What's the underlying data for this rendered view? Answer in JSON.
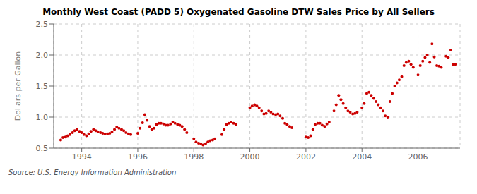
{
  "chart_data": {
    "type": "scatter",
    "title": "Monthly West Coast (PADD 5) Oxygenated Gasoline DTW Sales Price by All Sellers",
    "ylabel": "Dollars per Gallon",
    "annotations": [
      "Source: U.S. Energy Information Administration"
    ],
    "color": "#cc0000",
    "grid": true,
    "xlim": [
      1993.0,
      2007.5
    ],
    "xticks": [
      1994,
      1996,
      1998,
      2000,
      2002,
      2004,
      2006
    ],
    "ylim": [
      0.5,
      2.5
    ],
    "yticks": [
      0.5,
      {
        "value": 1.0,
        "label": "1.0"
      },
      1.5,
      {
        "value": 2.0,
        "label": "2.0"
      },
      2.5
    ],
    "x": [
      1993.25,
      1993.33,
      1993.42,
      1993.5,
      1993.58,
      1993.67,
      1993.75,
      1993.83,
      1993.92,
      1994.0,
      1994.08,
      1994.17,
      1994.25,
      1994.33,
      1994.42,
      1994.5,
      1994.58,
      1994.67,
      1994.75,
      1994.83,
      1994.92,
      1995.0,
      1995.08,
      1995.17,
      1995.25,
      1995.33,
      1995.42,
      1995.5,
      1995.58,
      1995.67,
      1995.75,
      1996.0,
      1996.08,
      1996.17,
      1996.25,
      1996.33,
      1996.42,
      1996.5,
      1996.58,
      1996.67,
      1996.75,
      1996.83,
      1996.92,
      1997.0,
      1997.08,
      1997.17,
      1997.25,
      1997.33,
      1997.42,
      1997.5,
      1997.58,
      1997.67,
      1997.75,
      1998.0,
      1998.08,
      1998.17,
      1998.25,
      1998.33,
      1998.42,
      1998.5,
      1998.58,
      1998.67,
      1998.75,
      1999.0,
      1999.08,
      1999.17,
      1999.25,
      1999.33,
      1999.42,
      1999.5,
      2000.0,
      2000.08,
      2000.17,
      2000.25,
      2000.33,
      2000.42,
      2000.5,
      2000.58,
      2000.67,
      2000.75,
      2000.83,
      2000.92,
      2001.0,
      2001.08,
      2001.17,
      2001.25,
      2001.33,
      2001.42,
      2001.5,
      2002.0,
      2002.08,
      2002.17,
      2002.25,
      2002.33,
      2002.42,
      2002.5,
      2002.58,
      2002.67,
      2002.75,
      2002.83,
      2003.0,
      2003.08,
      2003.17,
      2003.25,
      2003.33,
      2003.42,
      2003.5,
      2003.58,
      2003.67,
      2003.75,
      2003.83,
      2004.0,
      2004.08,
      2004.17,
      2004.25,
      2004.33,
      2004.42,
      2004.5,
      2004.58,
      2004.67,
      2004.75,
      2004.83,
      2004.92,
      2005.0,
      2005.08,
      2005.17,
      2005.25,
      2005.33,
      2005.42,
      2005.5,
      2005.58,
      2005.67,
      2005.75,
      2005.83,
      2006.0,
      2006.08,
      2006.17,
      2006.25,
      2006.33,
      2006.42,
      2006.5,
      2006.58,
      2006.67,
      2006.75,
      2006.83,
      2007.0,
      2007.08,
      2007.17,
      2007.25,
      2007.33
    ],
    "values": [
      0.63,
      0.67,
      0.68,
      0.7,
      0.72,
      0.75,
      0.78,
      0.8,
      0.77,
      0.75,
      0.72,
      0.7,
      0.73,
      0.77,
      0.8,
      0.78,
      0.76,
      0.75,
      0.74,
      0.73,
      0.73,
      0.74,
      0.76,
      0.8,
      0.84,
      0.82,
      0.8,
      0.78,
      0.75,
      0.73,
      0.72,
      0.74,
      0.82,
      0.91,
      1.04,
      0.95,
      0.85,
      0.8,
      0.82,
      0.88,
      0.9,
      0.9,
      0.89,
      0.87,
      0.87,
      0.89,
      0.92,
      0.9,
      0.88,
      0.87,
      0.85,
      0.8,
      0.75,
      0.65,
      0.6,
      0.58,
      0.57,
      0.55,
      0.57,
      0.6,
      0.62,
      0.63,
      0.65,
      0.72,
      0.8,
      0.88,
      0.9,
      0.92,
      0.9,
      0.88,
      1.15,
      1.18,
      1.2,
      1.18,
      1.15,
      1.1,
      1.05,
      1.06,
      1.1,
      1.08,
      1.05,
      1.04,
      1.05,
      1.02,
      0.98,
      0.9,
      0.88,
      0.85,
      0.83,
      0.68,
      0.67,
      0.7,
      0.8,
      0.88,
      0.9,
      0.9,
      0.87,
      0.85,
      0.89,
      0.92,
      1.1,
      1.2,
      1.35,
      1.28,
      1.22,
      1.15,
      1.1,
      1.08,
      1.05,
      1.06,
      1.08,
      1.15,
      1.22,
      1.38,
      1.4,
      1.35,
      1.3,
      1.25,
      1.2,
      1.15,
      1.1,
      1.02,
      1.0,
      1.25,
      1.38,
      1.5,
      1.55,
      1.6,
      1.65,
      1.83,
      1.88,
      1.9,
      1.85,
      1.8,
      1.68,
      1.83,
      1.9,
      1.96,
      2.0,
      1.88,
      2.18,
      1.97,
      1.83,
      1.82,
      1.8,
      1.98,
      1.96,
      2.08,
      1.85,
      1.85
    ]
  }
}
